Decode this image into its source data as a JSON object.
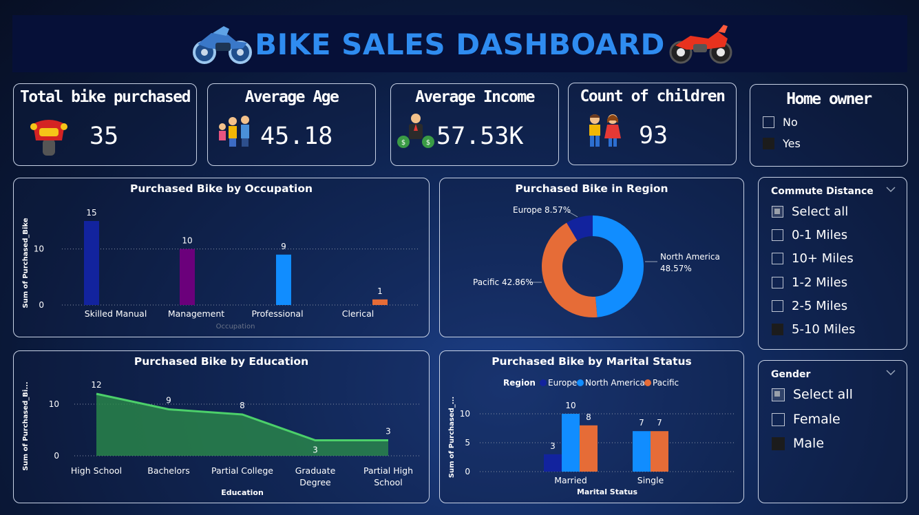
{
  "header": {
    "title": "BIKE SALES DASHBOARD"
  },
  "kpis": [
    {
      "title": "Total bike purchased",
      "value": "35",
      "icon": "motorcycle-front-icon"
    },
    {
      "title": "Average Age",
      "value": "45.18",
      "icon": "family-icon"
    },
    {
      "title": "Average Income",
      "value": "57.53K",
      "icon": "money-man-icon"
    },
    {
      "title": "Count of children",
      "value": "93",
      "icon": "children-icon"
    }
  ],
  "home_owner": {
    "title": "Home owner",
    "options": [
      {
        "label": "No",
        "state": "empty"
      },
      {
        "label": "Yes",
        "state": "filled"
      }
    ]
  },
  "commute": {
    "title": "Commute Distance",
    "options": [
      {
        "label": "Select all",
        "state": "partial"
      },
      {
        "label": "0-1 Miles",
        "state": "empty"
      },
      {
        "label": "10+ Miles",
        "state": "empty"
      },
      {
        "label": "1-2 Miles",
        "state": "empty"
      },
      {
        "label": "2-5 Miles",
        "state": "empty"
      },
      {
        "label": "5-10 Miles",
        "state": "filled"
      }
    ]
  },
  "gender": {
    "title": "Gender",
    "options": [
      {
        "label": "Select all",
        "state": "partial"
      },
      {
        "label": "Female",
        "state": "empty"
      },
      {
        "label": "Male",
        "state": "filled"
      }
    ]
  },
  "colors": {
    "title_blue": "#2f8cf0",
    "navy": "#12239e",
    "purple": "#6b007b",
    "blue": "#118dff",
    "orange": "#e66c37",
    "green": "#2a8a4a"
  },
  "chart_data": [
    {
      "id": "occupation",
      "type": "bar",
      "title": "Purchased Bike by Occupation",
      "xlabel": "Occupation",
      "ylabel": "Sum of Purchased_Bike",
      "categories": [
        "Skilled Manual",
        "Management",
        "Professional",
        "Clerical"
      ],
      "values": [
        15,
        10,
        9,
        1
      ],
      "ylim": [
        0,
        15
      ],
      "yticks": [
        0,
        10
      ],
      "colors": [
        "#12239e",
        "#6b007b",
        "#118dff",
        "#e66c37"
      ]
    },
    {
      "id": "region",
      "type": "pie",
      "title": "Purchased Bike in Region",
      "slices": [
        {
          "label": "North America",
          "pct": "48.57%",
          "value": 48.57,
          "color": "#118dff"
        },
        {
          "label": "Pacific",
          "pct": "42.86%",
          "value": 42.86,
          "color": "#e66c37"
        },
        {
          "label": "Europe",
          "pct": "8.57%",
          "value": 8.57,
          "color": "#12239e"
        }
      ]
    },
    {
      "id": "education",
      "type": "area",
      "title": "Purchased Bike by Education",
      "xlabel": "Education",
      "ylabel": "Sum of Purchased_Bi...",
      "categories": [
        "High School",
        "Bachelors",
        "Partial College",
        "Graduate Degree",
        "Partial High School"
      ],
      "values": [
        12,
        9,
        8,
        3,
        3
      ],
      "ylim": [
        0,
        12
      ],
      "yticks": [
        0,
        10
      ]
    },
    {
      "id": "marital",
      "type": "bar",
      "title": "Purchased Bike by Marital Status",
      "xlabel": "Marital Status",
      "ylabel": "Sum of Purchased_...",
      "legend_title": "Region",
      "categories": [
        "Married",
        "Single"
      ],
      "series": [
        {
          "name": "Europe",
          "values": [
            3,
            0
          ],
          "color": "#12239e"
        },
        {
          "name": "North America",
          "values": [
            10,
            7
          ],
          "color": "#118dff"
        },
        {
          "name": "Pacific",
          "values": [
            8,
            7
          ],
          "color": "#e66c37"
        }
      ],
      "ylim": [
        0,
        10
      ],
      "yticks": [
        0,
        5,
        10
      ]
    }
  ]
}
